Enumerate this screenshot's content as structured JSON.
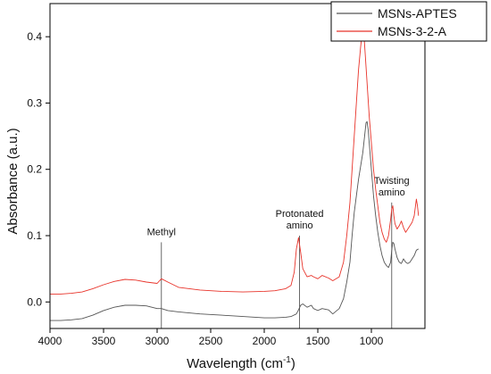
{
  "chart_data": {
    "type": "line",
    "xlabel": "Wavelength (cm",
    "xlabel_sup": "-1",
    "xlabel_tail": ")",
    "ylabel": "Absorbance (a.u.)",
    "xlim": [
      4000,
      500
    ],
    "ylim": [
      -0.04,
      0.45
    ],
    "x_reversed": true,
    "grid": false,
    "legend_position": "top-right",
    "x_ticks": [
      4000,
      3500,
      3000,
      2500,
      2000,
      1500,
      1000
    ],
    "x_tick_labels": [
      "4000",
      "3500",
      "3000",
      "2500",
      "2000",
      "1500",
      "1000"
    ],
    "y_ticks": [
      0.0,
      0.1,
      0.2,
      0.3,
      0.4
    ],
    "y_tick_labels": [
      "0.0",
      "0.1",
      "0.2",
      "0.3",
      "0.4"
    ],
    "series": [
      {
        "name": "MSNs-APTES",
        "color": "#555555",
        "x": [
          4000,
          3900,
          3800,
          3700,
          3600,
          3500,
          3400,
          3300,
          3200,
          3100,
          3000,
          2960,
          2900,
          2800,
          2600,
          2400,
          2200,
          2000,
          1900,
          1800,
          1750,
          1700,
          1680,
          1660,
          1640,
          1600,
          1560,
          1540,
          1500,
          1460,
          1400,
          1360,
          1300,
          1260,
          1230,
          1200,
          1180,
          1160,
          1140,
          1120,
          1100,
          1080,
          1060,
          1050,
          1040,
          1030,
          1020,
          1000,
          980,
          960,
          940,
          920,
          900,
          880,
          860,
          840,
          820,
          810,
          800,
          790,
          780,
          760,
          740,
          720,
          700,
          680,
          660,
          640,
          620,
          600,
          580,
          560
        ],
        "y": [
          -0.028,
          -0.028,
          -0.027,
          -0.025,
          -0.02,
          -0.013,
          -0.008,
          -0.005,
          -0.005,
          -0.006,
          -0.01,
          -0.01,
          -0.013,
          -0.015,
          -0.018,
          -0.02,
          -0.022,
          -0.024,
          -0.024,
          -0.023,
          -0.022,
          -0.018,
          -0.012,
          -0.005,
          -0.003,
          -0.008,
          -0.005,
          -0.01,
          -0.013,
          -0.01,
          -0.012,
          -0.018,
          -0.01,
          0.005,
          0.03,
          0.06,
          0.1,
          0.135,
          0.16,
          0.185,
          0.205,
          0.225,
          0.255,
          0.27,
          0.272,
          0.26,
          0.24,
          0.2,
          0.16,
          0.13,
          0.105,
          0.085,
          0.07,
          0.06,
          0.055,
          0.052,
          0.06,
          0.078,
          0.09,
          0.088,
          0.08,
          0.067,
          0.06,
          0.058,
          0.065,
          0.06,
          0.058,
          0.06,
          0.065,
          0.07,
          0.078,
          0.08
        ]
      },
      {
        "name": "MSNs-3-2-A",
        "color": "#e8332a",
        "x": [
          4000,
          3900,
          3800,
          3700,
          3600,
          3500,
          3400,
          3300,
          3200,
          3100,
          3000,
          2960,
          2900,
          2800,
          2600,
          2400,
          2200,
          2000,
          1900,
          1800,
          1750,
          1720,
          1700,
          1680,
          1660,
          1640,
          1600,
          1560,
          1540,
          1500,
          1460,
          1400,
          1360,
          1300,
          1260,
          1230,
          1200,
          1180,
          1160,
          1140,
          1120,
          1100,
          1090,
          1080,
          1070,
          1060,
          1040,
          1020,
          1000,
          980,
          960,
          940,
          920,
          900,
          880,
          860,
          840,
          820,
          810,
          800,
          790,
          780,
          760,
          740,
          720,
          700,
          680,
          660,
          640,
          620,
          600,
          580,
          570,
          560
        ],
        "y": [
          0.012,
          0.012,
          0.013,
          0.015,
          0.02,
          0.026,
          0.031,
          0.034,
          0.033,
          0.03,
          0.028,
          0.035,
          0.03,
          0.022,
          0.018,
          0.016,
          0.015,
          0.016,
          0.017,
          0.02,
          0.025,
          0.045,
          0.08,
          0.097,
          0.075,
          0.05,
          0.038,
          0.04,
          0.038,
          0.035,
          0.04,
          0.036,
          0.032,
          0.038,
          0.06,
          0.1,
          0.15,
          0.2,
          0.25,
          0.3,
          0.35,
          0.385,
          0.4,
          0.41,
          0.405,
          0.38,
          0.33,
          0.28,
          0.24,
          0.2,
          0.17,
          0.145,
          0.12,
          0.105,
          0.095,
          0.09,
          0.1,
          0.125,
          0.14,
          0.145,
          0.13,
          0.118,
          0.11,
          0.115,
          0.122,
          0.112,
          0.105,
          0.11,
          0.115,
          0.12,
          0.13,
          0.155,
          0.145,
          0.13
        ]
      }
    ],
    "annotations": [
      {
        "lines": [
          "Methyl"
        ],
        "x": 2960,
        "y_top": 0.09,
        "y_bottom": -0.04
      },
      {
        "lines": [
          "Protonated",
          "amino"
        ],
        "x": 1670,
        "y_top": 0.1,
        "y_bottom": -0.04
      },
      {
        "lines": [
          "Twisting",
          "amino"
        ],
        "x": 810,
        "y_top": 0.15,
        "y_bottom": -0.04
      }
    ]
  }
}
